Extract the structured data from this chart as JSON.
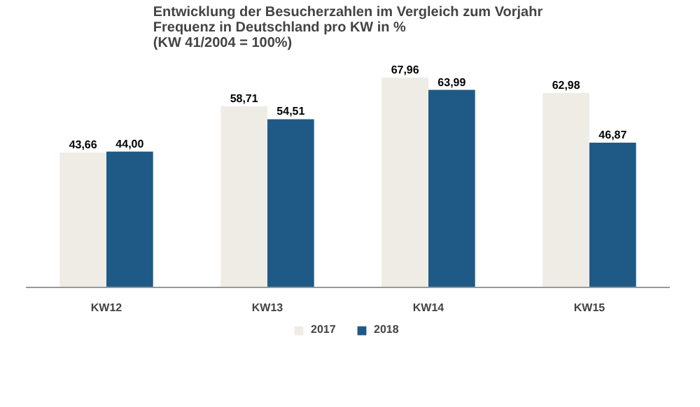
{
  "chart_data": {
    "type": "bar",
    "title": "Entwicklung der Besucherzahlen im Vergleich zum Vorjahr\nFrequenz in Deutschland pro KW in %\n(KW 41/2004 = 100%)",
    "categories": [
      "KW12",
      "KW13",
      "KW14",
      "KW15"
    ],
    "series": [
      {
        "name": "2017",
        "color": "#efece6",
        "values": [
          43.66,
          58.71,
          67.96,
          62.98
        ],
        "value_labels": [
          "43,66",
          "58,71",
          "67,96",
          "62,98"
        ]
      },
      {
        "name": "2018",
        "color": "#1f5a86",
        "values": [
          44.0,
          54.51,
          63.99,
          46.87
        ],
        "value_labels": [
          "44,00",
          "54,51",
          "63,99",
          "46,87"
        ]
      }
    ],
    "legend": "bottom"
  }
}
